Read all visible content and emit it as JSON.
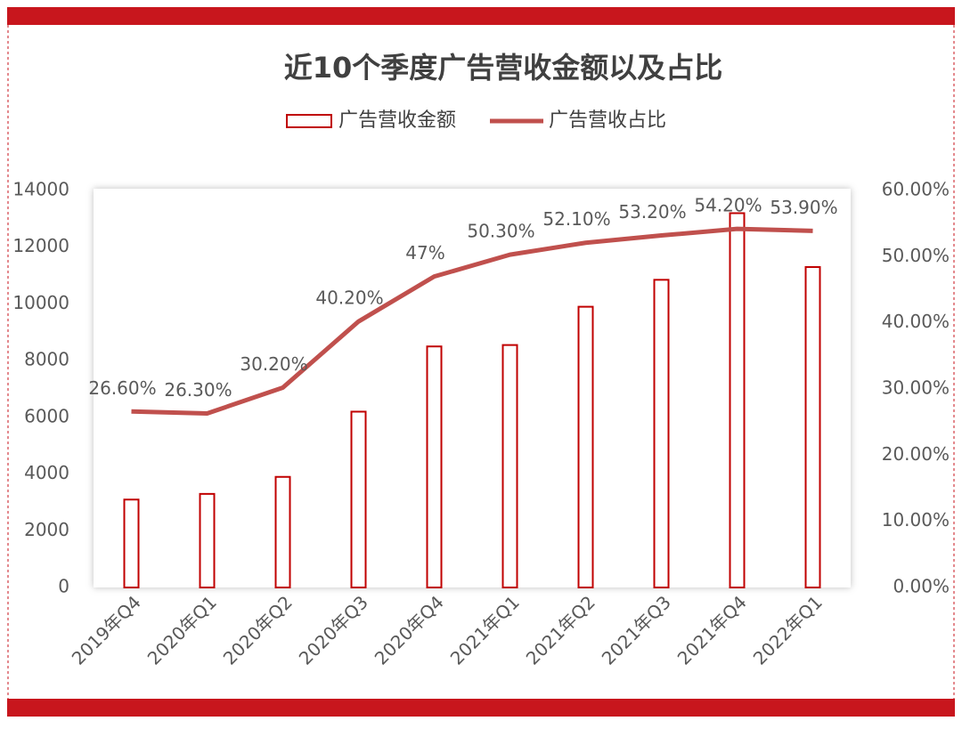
{
  "chart_data": {
    "type": "bar_line",
    "title": "近10个季度广告营收金额以及占比",
    "categories": [
      "2019年Q4",
      "2020年Q1",
      "2020年Q2",
      "2020年Q3",
      "2020年Q4",
      "2021年Q1",
      "2021年Q2",
      "2021年Q3",
      "2021年Q4",
      "2022年Q1"
    ],
    "series": [
      {
        "name": "广告营收金额",
        "type": "bar",
        "color": "#c00000",
        "values": [
          3100,
          3300,
          3900,
          6200,
          8500,
          8550,
          9900,
          10850,
          13200,
          11300
        ]
      },
      {
        "name": "广告营收占比",
        "type": "line",
        "axis": "y2",
        "color": "#c0504d",
        "values": [
          26.6,
          26.3,
          30.2,
          40.2,
          47,
          50.3,
          52.1,
          53.2,
          54.2,
          53.9
        ],
        "value_labels": [
          "26.60%",
          "26.30%",
          "30.20%",
          "40.20%",
          "47%",
          "50.30%",
          "52.10%",
          "53.20%",
          "54.20%",
          "53.90%"
        ]
      }
    ],
    "ylim": [
      0,
      14000
    ],
    "yticks": [
      0,
      2000,
      4000,
      6000,
      8000,
      10000,
      12000,
      14000
    ],
    "y2lim": [
      0,
      60
    ],
    "y2ticks": [
      {
        "value": 0,
        "label": "0.00%"
      },
      {
        "value": 10,
        "label": "10.00%"
      },
      {
        "value": 20,
        "label": "20.00%"
      },
      {
        "value": 30,
        "label": "30.00%"
      },
      {
        "value": 40,
        "label": "40.00%"
      },
      {
        "value": 50,
        "label": "50.00%"
      },
      {
        "value": 60,
        "label": "60.00%"
      }
    ],
    "legend": "top"
  }
}
